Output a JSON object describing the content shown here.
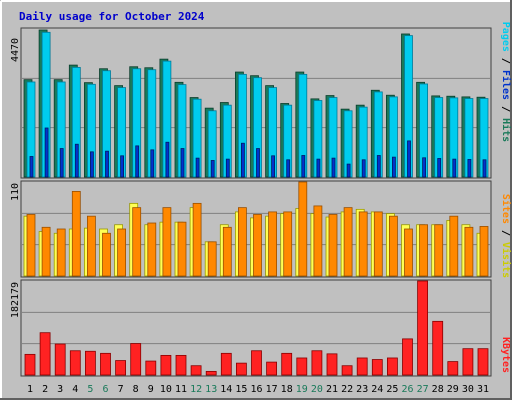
{
  "chart_data": [
    {
      "type": "bar",
      "title": "Daily usage for October 2024",
      "panel": "hits-files-pages",
      "ymax_label": "4470",
      "ylim": [
        0,
        4470
      ],
      "categories": [
        "1",
        "2",
        "3",
        "4",
        "5",
        "6",
        "7",
        "8",
        "9",
        "10",
        "11",
        "12",
        "13",
        "14",
        "15",
        "16",
        "17",
        "18",
        "19",
        "20",
        "21",
        "22",
        "23",
        "24",
        "25",
        "26",
        "27",
        "28",
        "29",
        "30",
        "31"
      ],
      "weekend_days": [
        "5",
        "6",
        "12",
        "13",
        "19",
        "20",
        "26",
        "27"
      ],
      "legend": [
        "Pages",
        "Files",
        "Hits"
      ],
      "series": [
        {
          "name": "Hits",
          "color": "#1a7a5a",
          "values": [
            2940,
            4440,
            2940,
            3380,
            2850,
            3270,
            2760,
            3330,
            3300,
            3560,
            2860,
            2400,
            2080,
            2250,
            3170,
            3060,
            2760,
            2220,
            3170,
            2360,
            2460,
            2050,
            2170,
            2620,
            2470,
            4320,
            2860,
            2450,
            2440,
            2420,
            2410
          ]
        },
        {
          "name": "Files",
          "color": "#00ccee",
          "values": [
            2870,
            4370,
            2870,
            3310,
            2800,
            3210,
            2700,
            3270,
            3240,
            3500,
            2790,
            2350,
            2000,
            2170,
            3100,
            3000,
            2700,
            2170,
            3100,
            2310,
            2400,
            2000,
            2110,
            2570,
            2420,
            4270,
            2810,
            2400,
            2390,
            2370,
            2370
          ]
        },
        {
          "name": "Pages",
          "color": "#0033cc",
          "values": [
            620,
            1480,
            860,
            990,
            760,
            780,
            640,
            940,
            820,
            1050,
            860,
            570,
            500,
            540,
            1020,
            860,
            640,
            520,
            650,
            540,
            570,
            390,
            520,
            650,
            600,
            1090,
            580,
            560,
            540,
            530,
            520
          ]
        }
      ]
    },
    {
      "type": "bar",
      "panel": "visits-sites",
      "ymax_label": "110",
      "ylim": [
        0,
        110
      ],
      "legend": [
        "Sites",
        "Visits"
      ],
      "series": [
        {
          "name": "Visits",
          "color": "#ffff55",
          "values": [
            70,
            52,
            50,
            55,
            56,
            55,
            60,
            85,
            60,
            63,
            63,
            80,
            40,
            60,
            75,
            68,
            70,
            73,
            79,
            73,
            69,
            75,
            78,
            75,
            73,
            60,
            60,
            60,
            65,
            60,
            50
          ]
        },
        {
          "name": "Sites",
          "color": "#ff8800",
          "values": [
            72,
            57,
            55,
            99,
            70,
            50,
            55,
            80,
            62,
            80,
            63,
            85,
            40,
            57,
            80,
            72,
            75,
            75,
            110,
            82,
            72,
            80,
            75,
            75,
            70,
            55,
            60,
            60,
            70,
            57,
            58
          ]
        }
      ]
    },
    {
      "type": "bar",
      "panel": "kbytes",
      "ymax_label": "182179",
      "ylim": [
        0,
        182179
      ],
      "legend": [
        "KBytes"
      ],
      "series": [
        {
          "name": "KBytes",
          "color": "#ff2222",
          "values": [
            40000,
            82000,
            60000,
            47000,
            46000,
            42000,
            28000,
            61000,
            27000,
            38000,
            38000,
            18000,
            7000,
            42000,
            23000,
            47000,
            25000,
            42000,
            33000,
            47000,
            41000,
            18000,
            33000,
            30000,
            33000,
            70000,
            182179,
            104000,
            26000,
            51000,
            51000
          ]
        }
      ]
    }
  ]
}
